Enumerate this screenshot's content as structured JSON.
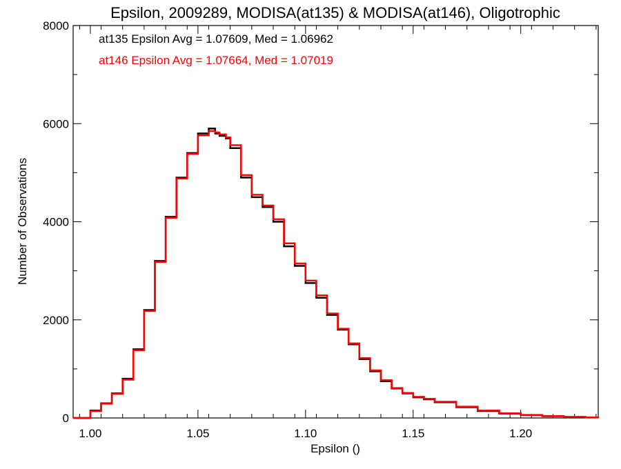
{
  "chart_data": {
    "type": "line",
    "title": "Epsilon, 2009289, MODISA(at135) & MODISA(at146), Oligotrophic",
    "xlabel": "Epsilon ()",
    "ylabel": "Number of Observations",
    "xlim": [
      0.992,
      1.236
    ],
    "ylim": [
      0,
      8000
    ],
    "x_ticks": [
      1.0,
      1.05,
      1.1,
      1.15,
      1.2
    ],
    "x_tick_labels": [
      "1.00",
      "1.05",
      "1.10",
      "1.15",
      "1.20"
    ],
    "y_ticks": [
      0,
      2000,
      4000,
      6000,
      8000
    ],
    "y_tick_labels": [
      "0",
      "2000",
      "4000",
      "6000",
      "8000"
    ],
    "grid": false,
    "annotations": [
      {
        "text": "at135 Epsilon Avg = 1.07609, Med = 1.06962",
        "color": "#000000"
      },
      {
        "text": "at146 Epsilon Avg = 1.07664, Med = 1.07019",
        "color": "#ff0000"
      }
    ],
    "x": [
      0.992,
      1.0,
      1.005,
      1.01,
      1.015,
      1.02,
      1.025,
      1.03,
      1.035,
      1.04,
      1.045,
      1.05,
      1.055,
      1.058,
      1.06,
      1.063,
      1.065,
      1.07,
      1.075,
      1.08,
      1.085,
      1.09,
      1.095,
      1.1,
      1.105,
      1.11,
      1.115,
      1.12,
      1.125,
      1.13,
      1.135,
      1.14,
      1.145,
      1.15,
      1.155,
      1.16,
      1.17,
      1.18,
      1.19,
      1.2,
      1.21,
      1.22,
      1.23,
      1.236
    ],
    "series": [
      {
        "name": "at135",
        "color": "#000000",
        "values": [
          0,
          150,
          300,
          500,
          800,
          1400,
          2200,
          3200,
          4100,
          4900,
          5400,
          5800,
          5900,
          5800,
          5750,
          5700,
          5500,
          4900,
          4500,
          4300,
          4000,
          3500,
          3100,
          2750,
          2450,
          2100,
          1800,
          1500,
          1200,
          950,
          750,
          600,
          500,
          420,
          380,
          320,
          220,
          140,
          90,
          60,
          35,
          20,
          10,
          5
        ]
      },
      {
        "name": "at146",
        "color": "#ff0000",
        "values": [
          0,
          140,
          290,
          490,
          780,
          1380,
          2180,
          3180,
          4080,
          4880,
          5380,
          5760,
          5850,
          5820,
          5780,
          5720,
          5560,
          4950,
          4550,
          4330,
          4050,
          3560,
          3150,
          2800,
          2500,
          2130,
          1820,
          1520,
          1220,
          970,
          770,
          610,
          510,
          430,
          390,
          330,
          230,
          150,
          95,
          62,
          38,
          22,
          12,
          6
        ]
      }
    ]
  }
}
